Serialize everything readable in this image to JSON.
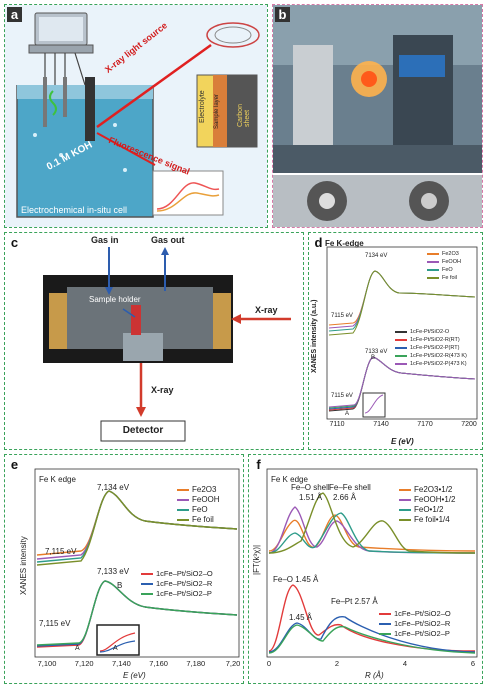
{
  "panel_a": {
    "label": "a",
    "xray_label": "X-ray light source",
    "fluor_label": "Fluorescence signal",
    "koh_label": "0.1 M KOH",
    "cell_label": "Electrochemical in-situ cell",
    "stack": [
      "Electrolyte",
      "Sample layer",
      "Carbon sheet"
    ]
  },
  "panel_b": {
    "label": "b"
  },
  "panel_c": {
    "label": "c",
    "gas_in": "Gas in",
    "gas_out": "Gas out",
    "sample_holder": "Sample holder",
    "xray_in": "X-ray",
    "xray_out": "X-ray",
    "detector": "Detector"
  },
  "panel_d": {
    "label": "d",
    "title": "Fe K-edge",
    "ylabel": "XANES intensity (a.u.)",
    "xlabel": "E (eV)",
    "xticks": [
      "7110",
      "7140",
      "7170",
      "7200"
    ],
    "ann": [
      "7134 eV",
      "7115 eV",
      "7133 eV",
      "7115 eV",
      "A",
      "B"
    ],
    "legend_top": [
      "Fe2O3",
      "FeOOH",
      "FeO",
      "Fe foil"
    ],
    "legend_bottom": [
      "1cFe-Pt/SiO2-O",
      "1cFe-Pt/SiO2-R(RT)",
      "1cFe-Pt/SiO2-P(RT)",
      "1cFe-Pt/SiO2-R(473 K)",
      "1cFe-Pt/SiO2-P(473 K)"
    ]
  },
  "panel_e": {
    "label": "e",
    "title": "Fe K edge",
    "ylabel": "XANES intensity",
    "xlabel": "E (eV)",
    "xticks": [
      "7,100",
      "7,120",
      "7,140",
      "7,160",
      "7,180",
      "7,20"
    ],
    "ann": [
      "7,134 eV",
      "7,115 eV",
      "7,133 eV",
      "B",
      "7,115 eV",
      "A",
      "A"
    ],
    "legend_top": [
      "Fe2O3",
      "FeOOH",
      "FeO",
      "Fe foil"
    ],
    "legend_bottom": [
      "1cFe–Pt/SiO2–O",
      "1cFe–Pt/SiO2–R",
      "1cFe–Pt/SiO2–P"
    ]
  },
  "panel_f": {
    "label": "f",
    "title": "Fe K edge",
    "ylabel": "|FT(k³χ)|",
    "xlabel": "R (Å)",
    "xticks": [
      "0",
      "2",
      "4",
      "6"
    ],
    "ann": [
      "Fe–O shell",
      "1.51 Å",
      "Fe–Fe shell",
      "2.66 Å",
      "Fe–O 1.45 Å",
      "Fe–Pt 2.57 Å",
      "1.45 Å"
    ],
    "legend_top": [
      "Fe2O3•1/2",
      "FeOOH•1/2",
      "FeO•1/2",
      "Fe foil•1/4"
    ],
    "legend_bottom": [
      "1cFe–Pt/SiO2–O",
      "1cFe–Pt/SiO2–R",
      "1cFe–Pt/SiO2–P"
    ]
  },
  "colors": {
    "fe2o3": "#e87d2a",
    "feooh": "#9b59b6",
    "feo": "#2e9c8a",
    "fefoil": "#7a8f2a",
    "o": "#e23b3b",
    "r": "#2b5fb0",
    "p": "#3aa35a"
  }
}
